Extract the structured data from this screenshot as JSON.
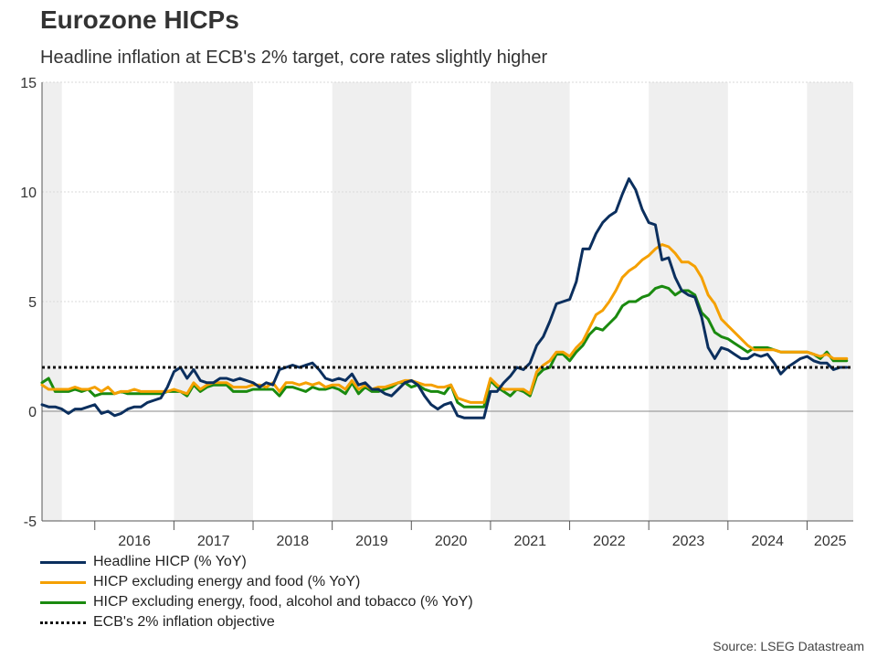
{
  "chart_data": {
    "type": "line",
    "title": "Eurozone HICPs",
    "subtitle": "Headline inflation at ECB's 2% target, core rates slightly higher",
    "source": "Source: LSEG Datastream",
    "xlabel": "",
    "ylabel": "",
    "ylim": [
      -5,
      15
    ],
    "yticks": [
      "-5",
      "0",
      "5",
      "10",
      "15"
    ],
    "xlim": [
      "2015-05",
      "2025-08"
    ],
    "year_labels": [
      "2016",
      "2017",
      "2018",
      "2019",
      "2020",
      "2021",
      "2022",
      "2023",
      "2024",
      "2025"
    ],
    "grid": "horizontal",
    "legend_position": "bottom-left",
    "shaded_periods": [
      [
        "2015-05",
        "2015-08"
      ],
      [
        "2017-01",
        "2018-01"
      ],
      [
        "2019-01",
        "2020-01"
      ],
      [
        "2021-01",
        "2022-01"
      ],
      [
        "2023-01",
        "2024-01"
      ],
      [
        "2025-01",
        "2025-08"
      ]
    ],
    "x": [
      "2015-05",
      "2015-06",
      "2015-07",
      "2015-08",
      "2015-09",
      "2015-10",
      "2015-11",
      "2015-12",
      "2016-01",
      "2016-02",
      "2016-03",
      "2016-04",
      "2016-05",
      "2016-06",
      "2016-07",
      "2016-08",
      "2016-09",
      "2016-10",
      "2016-11",
      "2016-12",
      "2017-01",
      "2017-02",
      "2017-03",
      "2017-04",
      "2017-05",
      "2017-06",
      "2017-07",
      "2017-08",
      "2017-09",
      "2017-10",
      "2017-11",
      "2017-12",
      "2018-01",
      "2018-02",
      "2018-03",
      "2018-04",
      "2018-05",
      "2018-06",
      "2018-07",
      "2018-08",
      "2018-09",
      "2018-10",
      "2018-11",
      "2018-12",
      "2019-01",
      "2019-02",
      "2019-03",
      "2019-04",
      "2019-05",
      "2019-06",
      "2019-07",
      "2019-08",
      "2019-09",
      "2019-10",
      "2019-11",
      "2019-12",
      "2020-01",
      "2020-02",
      "2020-03",
      "2020-04",
      "2020-05",
      "2020-06",
      "2020-07",
      "2020-08",
      "2020-09",
      "2020-10",
      "2020-11",
      "2020-12",
      "2021-01",
      "2021-02",
      "2021-03",
      "2021-04",
      "2021-05",
      "2021-06",
      "2021-07",
      "2021-08",
      "2021-09",
      "2021-10",
      "2021-11",
      "2021-12",
      "2022-01",
      "2022-02",
      "2022-03",
      "2022-04",
      "2022-05",
      "2022-06",
      "2022-07",
      "2022-08",
      "2022-09",
      "2022-10",
      "2022-11",
      "2022-12",
      "2023-01",
      "2023-02",
      "2023-03",
      "2023-04",
      "2023-05",
      "2023-06",
      "2023-07",
      "2023-08",
      "2023-09",
      "2023-10",
      "2023-11",
      "2023-12",
      "2024-01",
      "2024-02",
      "2024-03",
      "2024-04",
      "2024-05",
      "2024-06",
      "2024-07",
      "2024-08",
      "2024-09",
      "2024-10",
      "2024-11",
      "2024-12",
      "2025-01",
      "2025-02",
      "2025-03",
      "2025-04",
      "2025-05",
      "2025-06",
      "2025-07"
    ],
    "series": [
      {
        "name": "Headline HICP (% YoY)",
        "color": "#0b2f5e",
        "values": [
          0.3,
          0.2,
          0.2,
          0.1,
          -0.1,
          0.1,
          0.1,
          0.2,
          0.3,
          -0.1,
          0.0,
          -0.2,
          -0.1,
          0.1,
          0.2,
          0.2,
          0.4,
          0.5,
          0.6,
          1.1,
          1.8,
          2.0,
          1.5,
          1.9,
          1.4,
          1.3,
          1.3,
          1.5,
          1.5,
          1.4,
          1.5,
          1.4,
          1.3,
          1.1,
          1.3,
          1.2,
          1.9,
          2.0,
          2.1,
          2.0,
          2.1,
          2.2,
          1.9,
          1.5,
          1.4,
          1.5,
          1.4,
          1.7,
          1.2,
          1.3,
          1.0,
          1.0,
          0.8,
          0.7,
          1.0,
          1.3,
          1.4,
          1.2,
          0.7,
          0.3,
          0.1,
          0.3,
          0.4,
          -0.2,
          -0.3,
          -0.3,
          -0.3,
          -0.3,
          0.9,
          0.9,
          1.3,
          1.6,
          2.0,
          1.9,
          2.2,
          3.0,
          3.4,
          4.1,
          4.9,
          5.0,
          5.1,
          5.9,
          7.4,
          7.4,
          8.1,
          8.6,
          8.9,
          9.1,
          9.9,
          10.6,
          10.1,
          9.2,
          8.6,
          8.5,
          6.9,
          7.0,
          6.1,
          5.5,
          5.3,
          5.2,
          4.3,
          2.9,
          2.4,
          2.9,
          2.8,
          2.6,
          2.4,
          2.4,
          2.6,
          2.5,
          2.6,
          2.2,
          1.7,
          2.0,
          2.2,
          2.4,
          2.5,
          2.3,
          2.2,
          2.2,
          1.9,
          2.0,
          2.0
        ]
      },
      {
        "name": "HICP excluding energy and food (% YoY)",
        "color": "#f5a000",
        "values": [
          1.2,
          1.0,
          1.0,
          1.0,
          1.0,
          1.1,
          1.0,
          1.0,
          1.1,
          0.9,
          1.1,
          0.8,
          0.9,
          0.9,
          1.0,
          0.9,
          0.9,
          0.9,
          0.9,
          0.9,
          1.0,
          0.9,
          0.8,
          1.3,
          1.0,
          1.2,
          1.3,
          1.3,
          1.3,
          1.1,
          1.1,
          1.1,
          1.2,
          1.2,
          1.1,
          1.3,
          0.9,
          1.3,
          1.3,
          1.2,
          1.3,
          1.2,
          1.3,
          1.1,
          1.2,
          1.2,
          1.0,
          1.4,
          1.0,
          1.2,
          1.0,
          1.1,
          1.1,
          1.2,
          1.3,
          1.4,
          1.4,
          1.3,
          1.2,
          1.2,
          1.1,
          1.1,
          1.2,
          0.6,
          0.5,
          0.4,
          0.4,
          0.4,
          1.5,
          1.2,
          1.0,
          1.0,
          1.0,
          1.0,
          0.8,
          1.8,
          2.1,
          2.3,
          2.7,
          2.7,
          2.5,
          2.9,
          3.2,
          3.8,
          4.4,
          4.6,
          5.0,
          5.5,
          6.1,
          6.4,
          6.6,
          6.9,
          7.1,
          7.4,
          7.6,
          7.5,
          7.2,
          6.8,
          6.8,
          6.6,
          6.1,
          5.3,
          4.9,
          4.2,
          3.9,
          3.6,
          3.3,
          3.0,
          2.8,
          2.8,
          2.8,
          2.8,
          2.7,
          2.7,
          2.7,
          2.7,
          2.7,
          2.6,
          2.5,
          2.6,
          2.4,
          2.4,
          2.4
        ]
      },
      {
        "name": "HICP excluding energy, food, alcohol and tobacco (% YoY)",
        "color": "#1a8a0f",
        "values": [
          1.3,
          1.5,
          0.9,
          0.9,
          0.9,
          1.0,
          0.9,
          1.0,
          0.7,
          0.8,
          0.8,
          0.8,
          0.9,
          0.8,
          0.8,
          0.8,
          0.8,
          0.8,
          0.8,
          0.9,
          0.9,
          0.9,
          0.7,
          1.2,
          0.9,
          1.1,
          1.2,
          1.2,
          1.2,
          0.9,
          0.9,
          0.9,
          1.0,
          1.0,
          1.0,
          1.0,
          0.7,
          1.1,
          1.1,
          1.0,
          0.9,
          1.1,
          1.0,
          1.0,
          1.1,
          1.0,
          0.8,
          1.3,
          0.8,
          1.1,
          0.9,
          0.9,
          1.0,
          1.1,
          1.3,
          1.3,
          1.1,
          1.2,
          1.0,
          0.9,
          0.9,
          0.8,
          1.2,
          0.4,
          0.2,
          0.2,
          0.2,
          0.2,
          1.4,
          1.1,
          0.9,
          0.7,
          1.0,
          0.9,
          0.7,
          1.6,
          1.9,
          2.0,
          2.6,
          2.6,
          2.3,
          2.7,
          3.0,
          3.5,
          3.8,
          3.7,
          4.0,
          4.3,
          4.8,
          5.0,
          5.0,
          5.2,
          5.3,
          5.6,
          5.7,
          5.6,
          5.3,
          5.5,
          5.5,
          5.3,
          4.5,
          4.2,
          3.6,
          3.4,
          3.3,
          3.1,
          2.9,
          2.7,
          2.9,
          2.9,
          2.9,
          2.8,
          2.7,
          2.7,
          2.7,
          2.7,
          2.7,
          2.6,
          2.4,
          2.7,
          2.3,
          2.3,
          2.3
        ]
      }
    ],
    "reference_line": {
      "name": "ECB's 2% inflation objective",
      "value": 2,
      "color": "#111111"
    }
  }
}
